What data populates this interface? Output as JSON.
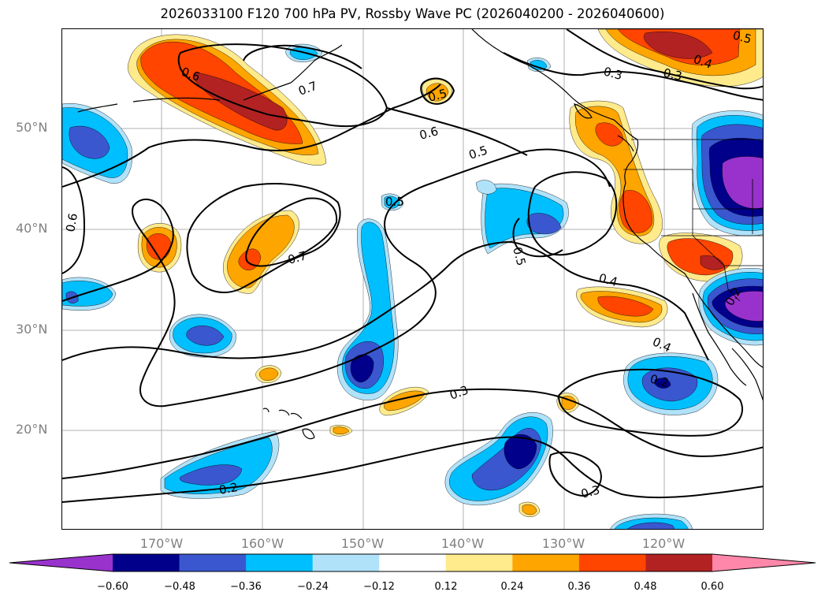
{
  "title": "2026033100 F120 700 hPa PV, Rossby Wave PC (2026040200 - 2026040600)",
  "axes": {
    "lat_labels": [
      "50°N",
      "40°N",
      "30°N",
      "20°N"
    ],
    "lon_labels": [
      "170°W",
      "160°W",
      "150°W",
      "140°W",
      "130°W",
      "120°W"
    ]
  },
  "contour_labels": [
    "0.6",
    "0.7",
    "0.5",
    "0.6",
    "0.5",
    "0.3",
    "0.3",
    "0.4",
    "0.5",
    "0.6",
    "0.7",
    "0.5",
    "0.4",
    "0.4",
    "0.2",
    "0.3",
    "0.3",
    "0.2",
    "0.2",
    "0.5"
  ],
  "colorbar": {
    "ticks": [
      "−0.60",
      "−0.48",
      "−0.36",
      "−0.24",
      "−0.12",
      "0.12",
      "0.24",
      "0.36",
      "0.48",
      "0.60"
    ],
    "colors": [
      "#9932cc",
      "#00008b",
      "#3a57cf",
      "#00bfff",
      "#b0e2fa",
      "#ffffff",
      "#ffea8c",
      "#ffa500",
      "#ff4500",
      "#b22222",
      "#ff88aa"
    ]
  }
}
